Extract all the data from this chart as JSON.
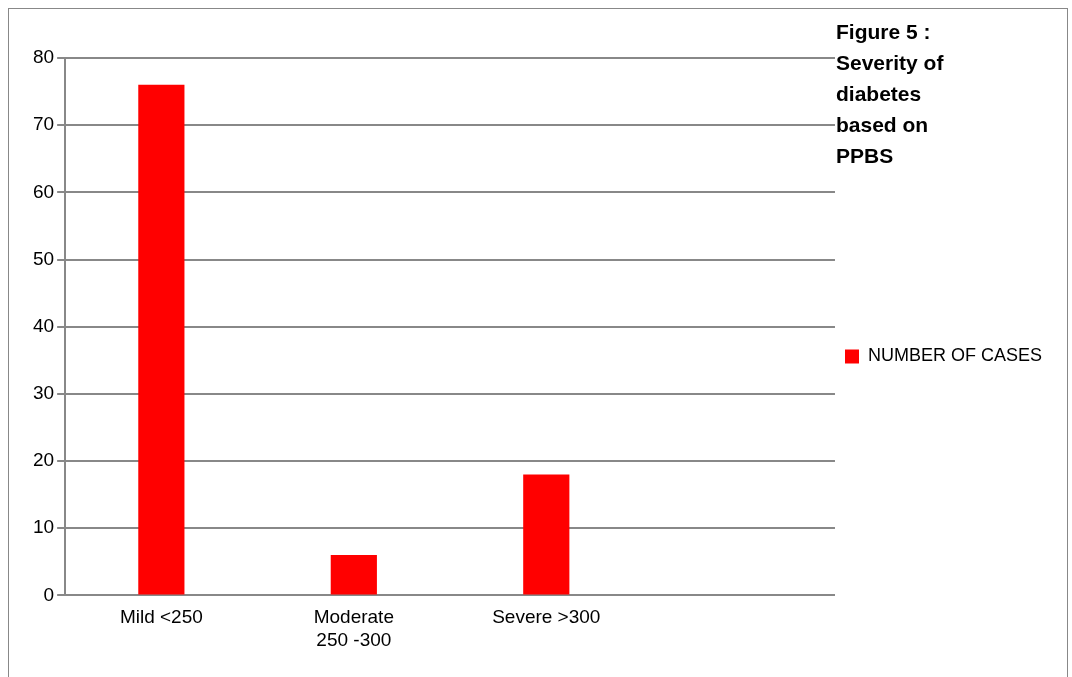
{
  "chart_data": {
    "type": "bar",
    "title": "Figure 5 : Severity of diabetes based on PPBS",
    "categories": [
      "Mild <250",
      "Moderate 250 -300",
      "Severe >300",
      null
    ],
    "series": [
      {
        "name": "NUMBER OF CASES",
        "color": "#ff0000",
        "values": [
          76,
          6,
          18,
          null
        ]
      }
    ],
    "ylim": [
      0,
      80
    ],
    "yticks": [
      0,
      10,
      20,
      30,
      40,
      50,
      60,
      70,
      80
    ],
    "grid": "y",
    "legend": "right"
  }
}
